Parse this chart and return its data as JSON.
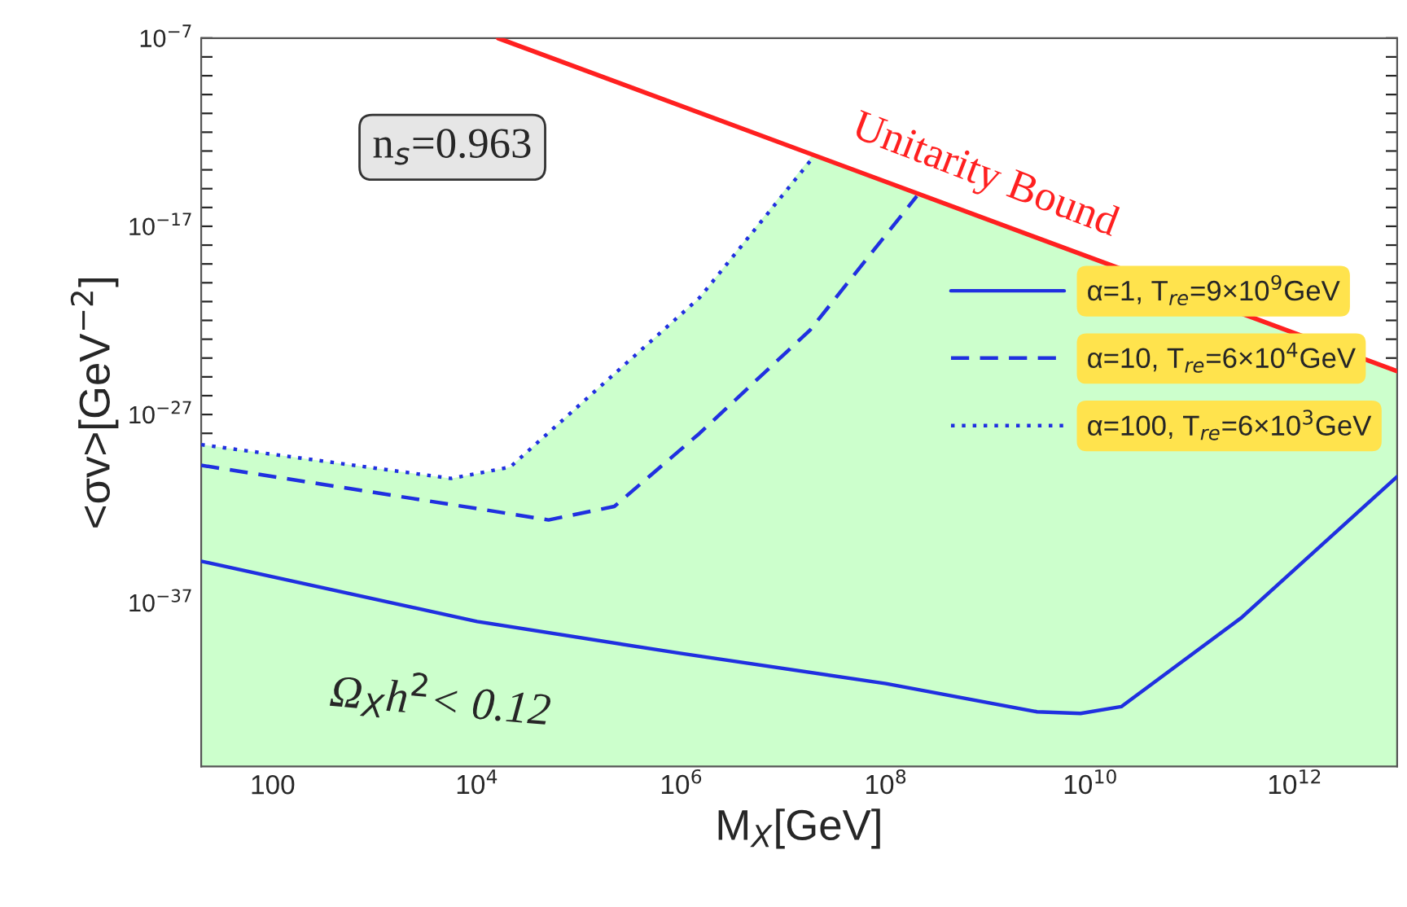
{
  "chart_data": {
    "type": "line",
    "xlabel": "M$_{X}$[GeV]",
    "ylabel": "<σv>[GeV$^{−2}$]",
    "log": "xy",
    "xlim": [
      20,
      10000000000000.0
    ],
    "ylim": [
      2e-46,
      1e-07
    ],
    "xticks": [
      100,
      {
        "value": 1000,
        "label": null
      },
      {
        "value": 10000,
        "label": "10$^{4}$"
      },
      {
        "value": 100000.0,
        "label": null
      },
      {
        "value": 1000000.0,
        "label": "10$^{6}$"
      },
      {
        "value": 10000000.0,
        "label": null
      },
      {
        "value": 100000000.0,
        "label": "10$^{8}$"
      },
      {
        "value": 1000000000.0,
        "label": null
      },
      {
        "value": 10000000000.0,
        "label": "10$^{10}$"
      },
      {
        "value": 100000000000.0,
        "label": null
      },
      {
        "value": 1000000000000.0,
        "label": "10$^{12}$"
      }
    ],
    "yticks": [
      {
        "value": 1e-07,
        "label": "10$^{−7}$"
      },
      {
        "value": 1e-08,
        "label": null
      },
      {
        "value": 1e-09,
        "label": null
      },
      {
        "value": 1e-10,
        "label": null
      },
      {
        "value": 1e-11,
        "label": null
      },
      {
        "value": 1e-12,
        "label": null
      },
      {
        "value": 1e-13,
        "label": null
      },
      {
        "value": 1e-14,
        "label": null
      },
      {
        "value": 1e-15,
        "label": null
      },
      {
        "value": 1e-16,
        "label": null
      },
      {
        "value": 1e-17,
        "label": "10$^{−17}$"
      },
      {
        "value": 1e-18,
        "label": null
      },
      {
        "value": 1e-19,
        "label": null
      },
      {
        "value": 1e-20,
        "label": null
      },
      {
        "value": 1e-21,
        "label": null
      },
      {
        "value": 1e-22,
        "label": null
      },
      {
        "value": 1e-23,
        "label": null
      },
      {
        "value": 1e-24,
        "label": null
      },
      {
        "value": 1e-25,
        "label": null
      },
      {
        "value": 1e-26,
        "label": null
      },
      {
        "value": 1e-27,
        "label": "10$^{−27}$"
      },
      {
        "value": 1e-28,
        "label": null
      },
      {
        "value": 1e-29,
        "label": null
      },
      {
        "value": 1e-30,
        "label": null
      },
      {
        "value": 1e-31,
        "label": null
      },
      {
        "value": 1e-32,
        "label": null
      },
      {
        "value": 1e-33,
        "label": null
      },
      {
        "value": 1e-34,
        "label": null
      },
      {
        "value": 1e-35,
        "label": null
      },
      {
        "value": 1e-36,
        "label": null
      },
      {
        "value": 1e-37,
        "label": "10$^{−37}$"
      },
      {
        "value": 1e-38,
        "label": null
      },
      {
        "value": 1e-39,
        "label": null
      },
      {
        "value": 1e-40,
        "label": null
      },
      {
        "value": 1e-41,
        "label": null
      },
      {
        "value": 1e-42,
        "label": null
      },
      {
        "value": 1e-43,
        "label": null
      },
      {
        "value": 1e-44,
        "label": null
      },
      {
        "value": 1e-45,
        "label": null
      }
    ],
    "grid": false,
    "legend": "right",
    "marker": "none",
    "series": [
      {
        "type": "area",
        "color": "#ccffcc",
        "x": [
          20,
          5600,
          21000,
          1500000.0,
          19000000.0,
          10000000000000.0
        ],
        "values": [
          2.5e-29,
          4e-31,
          1.6e-30,
          1.6e-21,
          6e-14,
          2e-25
        ]
      },
      {
        "color": "#ff2020",
        "line_style": "solid",
        "x": [
          16000,
          10000000000000.0
        ],
        "values": [
          1e-07,
          2e-25
        ]
      },
      {
        "name": "α=1, T$_{re}$=9×10$^{9}$GeV",
        "color": "#2030e0",
        "line_style": "solid",
        "x": [
          20,
          10000.0,
          1000000.0,
          100000000.0,
          3000000000.0,
          8000000000.0,
          20000000000.0,
          300000000000.0,
          10000000000000.0
        ],
        "values": [
          1.6e-35,
          1e-38,
          2e-40,
          5e-42,
          1.6e-43,
          1.3e-43,
          3e-43,
          1.6e-38,
          5e-31
        ]
      },
      {
        "name": "α=10, T$_{re}$=6×10$^{4}$GeV",
        "color": "#2030e0",
        "line_style": "dashed",
        "x": [
          20,
          10000.0,
          50000.0,
          220000.0,
          1500000.0,
          18000000.0,
          200000000.0
        ],
        "values": [
          2e-30,
          1e-32,
          2.5e-33,
          1.3e-32,
          1e-28,
          3e-23,
          4e-16
        ]
      },
      {
        "name": "α=100, T$_{re}$=6×10$^{3}$GeV",
        "color": "#2030e0",
        "line_style": "dotted",
        "x": [
          20,
          5600,
          21000,
          1500000.0,
          19000000.0
        ],
        "values": [
          2.5e-29,
          4e-31,
          1.6e-30,
          1.6e-21,
          4e-14
        ]
      }
    ],
    "annotations": [
      "n$_{s}$=0.963",
      "Unitarity Bound",
      "Ω$_{X}$h$^{2}$< 0.12"
    ]
  }
}
